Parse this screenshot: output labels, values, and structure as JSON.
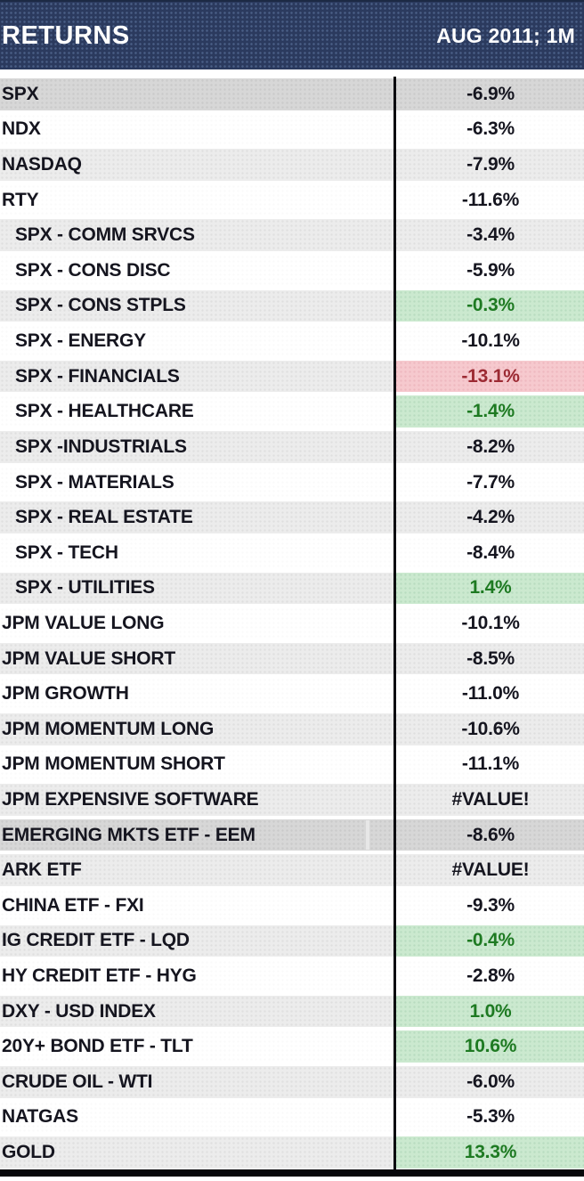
{
  "header": {
    "title": "RETURNS",
    "period": "AUG 2011; 1M"
  },
  "colors": {
    "header_bg": "#2b3a5e",
    "header_text": "#ffffff",
    "row_gray": "#ececec",
    "row_highlight": "#d7d7d7",
    "positive_bg": "#cbe9cf",
    "positive_text": "#1e7a22",
    "negative_bg": "#f6c9ce",
    "negative_text": "#9c2a33",
    "value_text": "#15151f",
    "divider": "#0c0c10",
    "bottom_border": "#07070a"
  },
  "rows": [
    {
      "label": "SPX",
      "value": "-6.9%",
      "indent": false,
      "shade": "dark",
      "value_style": "default",
      "selection_mark": false
    },
    {
      "label": "NDX",
      "value": "-6.3%",
      "indent": false,
      "shade": "white",
      "value_style": "default",
      "selection_mark": false
    },
    {
      "label": "NASDAQ",
      "value": "-7.9%",
      "indent": false,
      "shade": "gray",
      "value_style": "default",
      "selection_mark": false
    },
    {
      "label": "RTY",
      "value": "-11.6%",
      "indent": false,
      "shade": "white",
      "value_style": "default",
      "selection_mark": false
    },
    {
      "label": "SPX - COMM SRVCS",
      "value": "-3.4%",
      "indent": true,
      "shade": "gray",
      "value_style": "default",
      "selection_mark": false
    },
    {
      "label": "SPX - CONS DISC",
      "value": "-5.9%",
      "indent": true,
      "shade": "white",
      "value_style": "default",
      "selection_mark": false
    },
    {
      "label": "SPX - CONS STPLS",
      "value": "-0.3%",
      "indent": true,
      "shade": "gray",
      "value_style": "green",
      "selection_mark": false
    },
    {
      "label": "SPX - ENERGY",
      "value": "-10.1%",
      "indent": true,
      "shade": "white",
      "value_style": "default",
      "selection_mark": false
    },
    {
      "label": "SPX - FINANCIALS",
      "value": "-13.1%",
      "indent": true,
      "shade": "gray",
      "value_style": "red",
      "selection_mark": false
    },
    {
      "label": "SPX - HEALTHCARE",
      "value": "-1.4%",
      "indent": true,
      "shade": "white",
      "value_style": "green",
      "selection_mark": false
    },
    {
      "label": "SPX -INDUSTRIALS",
      "value": "-8.2%",
      "indent": true,
      "shade": "gray",
      "value_style": "default",
      "selection_mark": false
    },
    {
      "label": "SPX - MATERIALS",
      "value": "-7.7%",
      "indent": true,
      "shade": "white",
      "value_style": "default",
      "selection_mark": false
    },
    {
      "label": "SPX - REAL ESTATE",
      "value": "-4.2%",
      "indent": true,
      "shade": "gray",
      "value_style": "default",
      "selection_mark": false
    },
    {
      "label": "SPX - TECH",
      "value": "-8.4%",
      "indent": true,
      "shade": "white",
      "value_style": "default",
      "selection_mark": false
    },
    {
      "label": "SPX - UTILITIES",
      "value": "1.4%",
      "indent": true,
      "shade": "gray",
      "value_style": "green",
      "selection_mark": false
    },
    {
      "label": "JPM VALUE LONG",
      "value": "-10.1%",
      "indent": false,
      "shade": "white",
      "value_style": "default",
      "selection_mark": false
    },
    {
      "label": "JPM VALUE SHORT",
      "value": "-8.5%",
      "indent": false,
      "shade": "gray",
      "value_style": "default",
      "selection_mark": false
    },
    {
      "label": "JPM GROWTH",
      "value": "-11.0%",
      "indent": false,
      "shade": "white",
      "value_style": "default",
      "selection_mark": false
    },
    {
      "label": "JPM MOMENTUM LONG",
      "value": "-10.6%",
      "indent": false,
      "shade": "gray",
      "value_style": "default",
      "selection_mark": false
    },
    {
      "label": "JPM MOMENTUM SHORT",
      "value": "-11.1%",
      "indent": false,
      "shade": "white",
      "value_style": "default",
      "selection_mark": false
    },
    {
      "label": "JPM EXPENSIVE SOFTWARE",
      "value": "#VALUE!",
      "indent": false,
      "shade": "gray",
      "value_style": "default",
      "selection_mark": false
    },
    {
      "label": "EMERGING MKTS ETF - EEM",
      "value": "-8.6%",
      "indent": false,
      "shade": "dark",
      "value_style": "default",
      "selection_mark": true
    },
    {
      "label": "ARK ETF",
      "value": "#VALUE!",
      "indent": false,
      "shade": "gray",
      "value_style": "default",
      "selection_mark": false
    },
    {
      "label": "CHINA ETF - FXI",
      "value": "-9.3%",
      "indent": false,
      "shade": "white",
      "value_style": "default",
      "selection_mark": false
    },
    {
      "label": "IG CREDIT ETF - LQD",
      "value": "-0.4%",
      "indent": false,
      "shade": "gray",
      "value_style": "green",
      "selection_mark": false
    },
    {
      "label": "HY CREDIT ETF - HYG",
      "value": "-2.8%",
      "indent": false,
      "shade": "white",
      "value_style": "default",
      "selection_mark": false
    },
    {
      "label": "DXY - USD INDEX",
      "value": "1.0%",
      "indent": false,
      "shade": "gray",
      "value_style": "green",
      "selection_mark": false
    },
    {
      "label": "20Y+ BOND ETF - TLT",
      "value": "10.6%",
      "indent": false,
      "shade": "white",
      "value_style": "green",
      "selection_mark": false
    },
    {
      "label": "CRUDE OIL - WTI",
      "value": "-6.0%",
      "indent": false,
      "shade": "gray",
      "value_style": "default",
      "selection_mark": false
    },
    {
      "label": "NATGAS",
      "value": "-5.3%",
      "indent": false,
      "shade": "white",
      "value_style": "default",
      "selection_mark": false
    },
    {
      "label": "GOLD",
      "value": "13.3%",
      "indent": false,
      "shade": "gray",
      "value_style": "green",
      "selection_mark": false
    }
  ]
}
